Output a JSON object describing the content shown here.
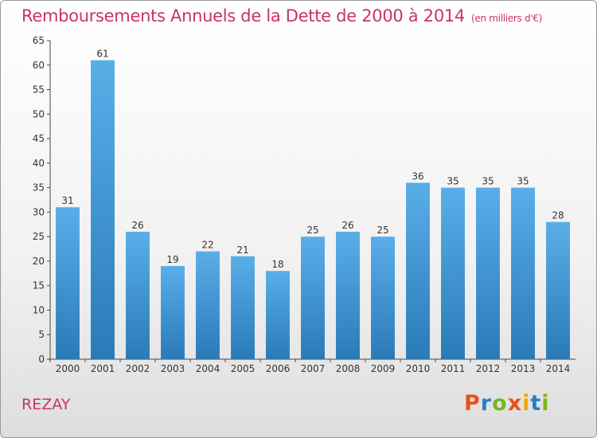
{
  "header": {
    "title": "Remboursements Annuels de la Dette de 2000 à 2014",
    "unit": "(en milliers d'€)"
  },
  "footer": {
    "commune": "REZAY",
    "logo_text": "Proxiti",
    "logo_colors": [
      "#e8521f",
      "#2a7fc4",
      "#7ab51d",
      "#e8521f",
      "#f0a800",
      "#2a7fc4",
      "#7ab51d"
    ]
  },
  "chart_data": {
    "type": "bar",
    "title": "Remboursements Annuels de la Dette de 2000 à 2014",
    "categories": [
      "2000",
      "2001",
      "2002",
      "2003",
      "2004",
      "2005",
      "2006",
      "2007",
      "2008",
      "2009",
      "2010",
      "2011",
      "2012",
      "2013",
      "2014"
    ],
    "values": [
      31,
      61,
      26,
      19,
      22,
      21,
      18,
      25,
      26,
      25,
      36,
      35,
      35,
      35,
      28
    ],
    "ylim": [
      0,
      65
    ],
    "yticks": [
      0,
      5,
      10,
      15,
      20,
      25,
      30,
      35,
      40,
      45,
      50,
      55,
      60,
      65
    ],
    "grid": false,
    "bar_color_top": "#5aaee8",
    "bar_color_bottom": "#2a7ab8"
  }
}
